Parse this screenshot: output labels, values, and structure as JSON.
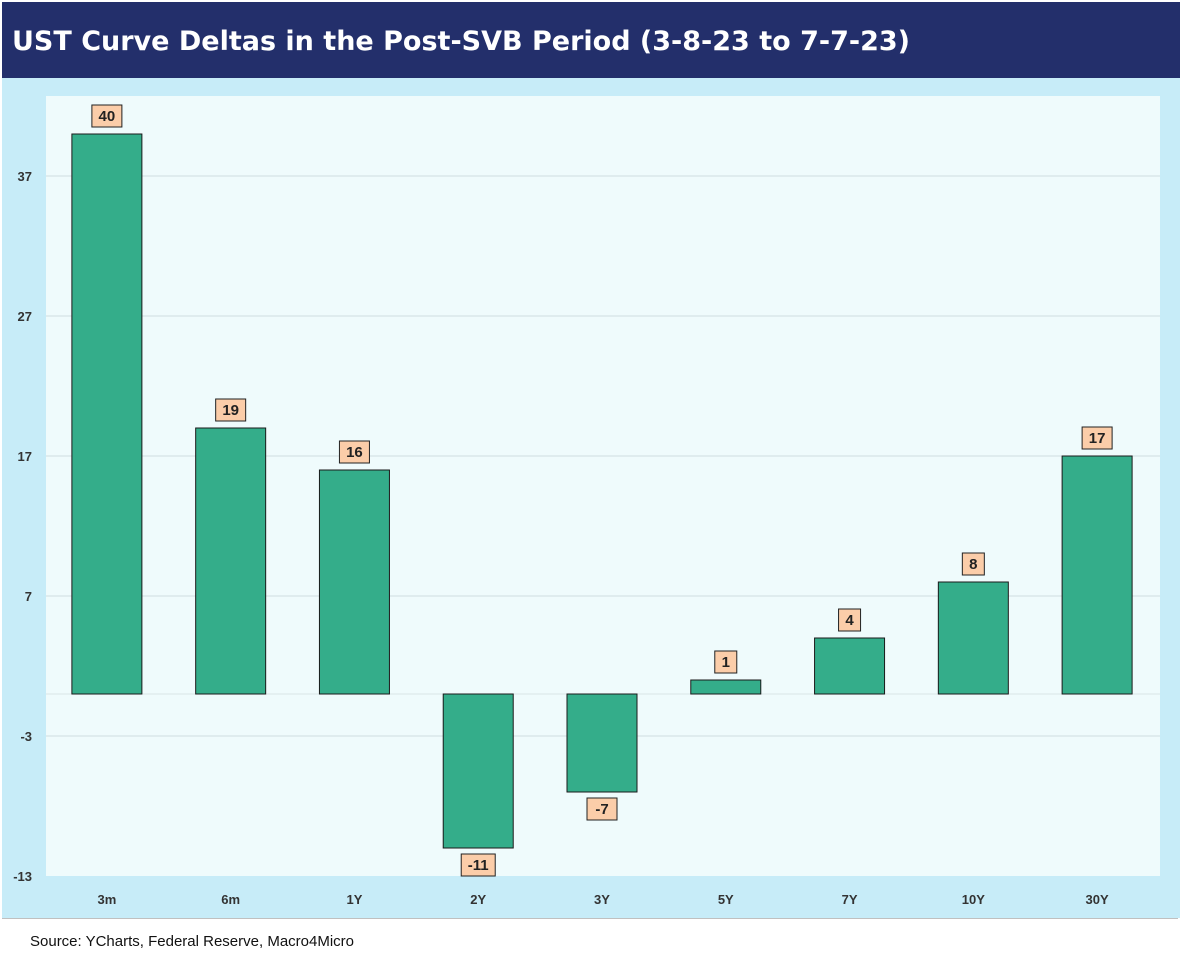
{
  "header": {
    "title": "UST Curve Deltas in the Post-SVB Period (3-8-23 to 7-7-23)"
  },
  "footer": {
    "source": "Source: YCharts, Federal Reserve, Macro4Micro"
  },
  "colors": {
    "title_background": "#232f6b",
    "chart_background": "#c7ecf8",
    "plot_background": "#effbfc",
    "bar_fill": "#34ad8a",
    "bar_stroke": "#1a1a1a",
    "label_fill": "#fbcda9",
    "gridline": "#cfdcdf"
  },
  "chart_data": {
    "type": "bar",
    "title": "UST Curve Deltas in the Post-SVB Period (3-8-23 to 7-7-23)",
    "xlabel": "",
    "ylabel": "",
    "categories": [
      "3m",
      "6m",
      "1Y",
      "2Y",
      "3Y",
      "5Y",
      "7Y",
      "10Y",
      "30Y"
    ],
    "values": [
      40,
      19,
      16,
      -11,
      -7,
      1,
      4,
      8,
      17
    ],
    "data_labels": [
      "40",
      "19",
      "16",
      "-11",
      "-7",
      "1",
      "4",
      "8",
      "17"
    ],
    "y_ticks": [
      37,
      27,
      17,
      7,
      -3,
      -13
    ],
    "ylim": [
      -13,
      42
    ],
    "grid": true,
    "legend": "none"
  }
}
